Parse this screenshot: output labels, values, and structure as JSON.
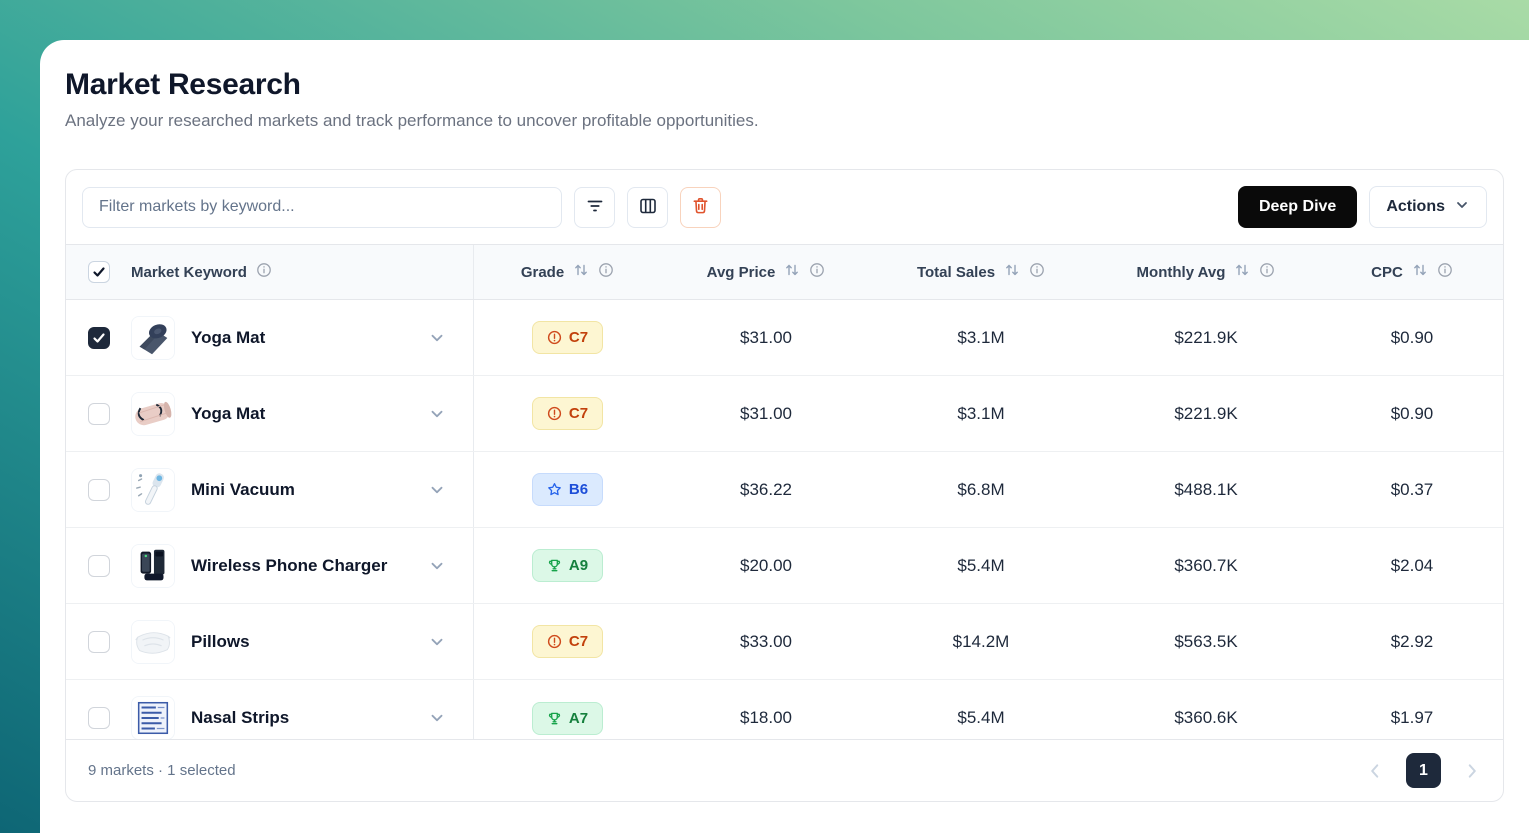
{
  "page": {
    "title": "Market Research",
    "subtitle": "Analyze your researched markets and track performance to uncover profitable opportunities."
  },
  "toolbar": {
    "filter_placeholder": "Filter markets by keyword...",
    "icons": [
      "filter-lines-icon",
      "columns-icon",
      "trash-icon"
    ],
    "deep_dive_label": "Deep Dive",
    "actions_label": "Actions"
  },
  "table": {
    "columns": [
      {
        "label": "Market Keyword",
        "sort": false,
        "info": true
      },
      {
        "label": "Grade",
        "sort": true,
        "info": true
      },
      {
        "label": "Avg Price",
        "sort": true,
        "info": true
      },
      {
        "label": "Total Sales",
        "sort": true,
        "info": true
      },
      {
        "label": "Monthly Avg",
        "sort": true,
        "info": true
      },
      {
        "label": "CPC",
        "sort": true,
        "info": true
      }
    ],
    "rows": [
      {
        "keyword": "Yoga Mat",
        "checked": true,
        "image": "yoga-dark",
        "grade": "C7",
        "tier": "warning",
        "avg_price": "$31.00",
        "total_sales": "$3.1M",
        "monthly_avg": "$221.9K",
        "cpc": "$0.90"
      },
      {
        "keyword": "Yoga Mat",
        "checked": false,
        "image": "yoga-pink",
        "grade": "C7",
        "tier": "warning",
        "avg_price": "$31.00",
        "total_sales": "$3.1M",
        "monthly_avg": "$221.9K",
        "cpc": "$0.90"
      },
      {
        "keyword": "Mini Vacuum",
        "checked": false,
        "image": "vacuum",
        "grade": "B6",
        "tier": "star",
        "avg_price": "$36.22",
        "total_sales": "$6.8M",
        "monthly_avg": "$488.1K",
        "cpc": "$0.37"
      },
      {
        "keyword": "Wireless Phone Charger",
        "checked": false,
        "image": "charger",
        "grade": "A9",
        "tier": "trophy",
        "avg_price": "$20.00",
        "total_sales": "$5.4M",
        "monthly_avg": "$360.7K",
        "cpc": "$2.04"
      },
      {
        "keyword": "Pillows",
        "checked": false,
        "image": "pillow",
        "grade": "C7",
        "tier": "warning",
        "avg_price": "$33.00",
        "total_sales": "$14.2M",
        "monthly_avg": "$563.5K",
        "cpc": "$2.92"
      },
      {
        "keyword": "Nasal Strips",
        "checked": false,
        "image": "nasal",
        "grade": "A7",
        "tier": "trophy",
        "avg_price": "$18.00",
        "total_sales": "$5.4M",
        "monthly_avg": "$360.6K",
        "cpc": "$1.97"
      }
    ]
  },
  "tier_icons": {
    "warning": "alert-circle-icon",
    "star": "star-icon",
    "trophy": "trophy-icon"
  },
  "footer": {
    "summary": "9 markets · 1 selected",
    "current_page": "1"
  },
  "colors": {
    "background_gradient_start": "#0e6675",
    "background_gradient_end": "#a9dba6",
    "primary_button": "#0a0a0a",
    "selected_checkbox": "#1e293b",
    "danger_icon": "#e0532d",
    "badge_warning_bg": "#fdf6d2",
    "badge_warning_text": "#c2410c",
    "badge_star_bg": "#dbeafe",
    "badge_star_text": "#1d4ed8",
    "badge_trophy_bg": "#dcf8e7",
    "badge_trophy_text": "#15803d"
  }
}
